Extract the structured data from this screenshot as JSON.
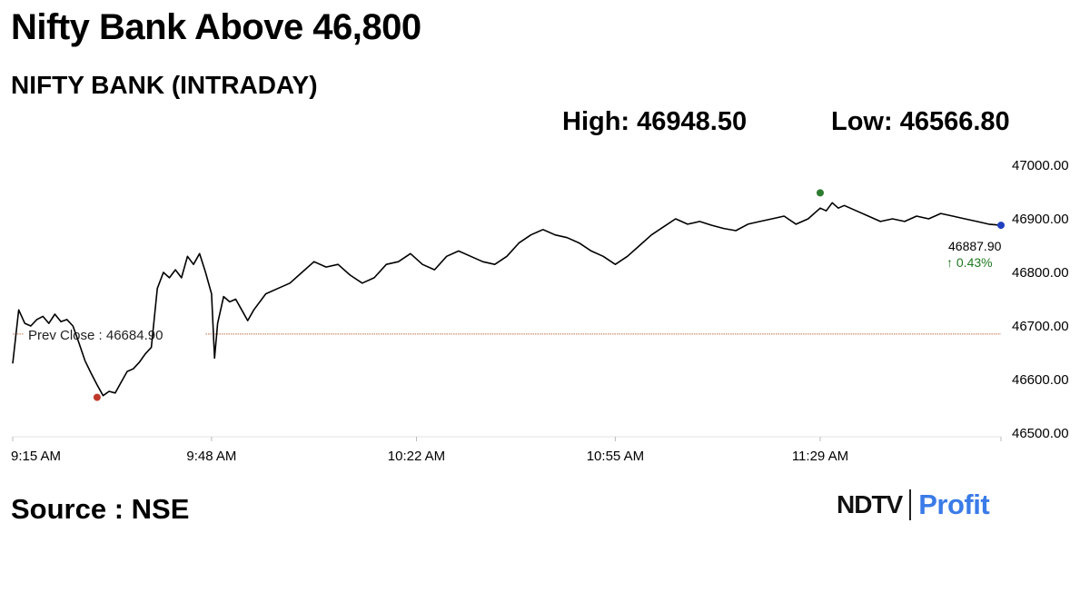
{
  "headline": "Nifty Bank Above 46,800",
  "subtitle": "NIFTY BANK (INTRADAY)",
  "stats": {
    "high": "High: 46948.50",
    "low": "Low: 46566.80"
  },
  "source": "Source : NSE",
  "logo": {
    "brand": "NDTV",
    "product": "Profit"
  },
  "colors": {
    "line": "#000000",
    "prev_close_line": "#c0704a",
    "low_marker": "#c0392b",
    "high_marker": "#2e7d32",
    "last_marker": "#1f3fbf",
    "change_positive": "#1f7a1f"
  },
  "chart_data": {
    "type": "line",
    "title": "NIFTY BANK (INTRADAY)",
    "xlabel": "",
    "ylabel": "",
    "x_ticks": [
      "9:15 AM",
      "9:48 AM",
      "10:22 AM",
      "10:55 AM",
      "11:29 AM"
    ],
    "y_ticks": [
      "46500.00",
      "46600.00",
      "46700.00",
      "46800.00",
      "46900.00",
      "47000.00"
    ],
    "ylim": [
      46500,
      47000
    ],
    "x_range_minutes": [
      0,
      164
    ],
    "tick_minutes": [
      0,
      33,
      67,
      100,
      134
    ],
    "series": [
      {
        "points": [
          [
            0,
            46630
          ],
          [
            1,
            46730
          ],
          [
            2,
            46705
          ],
          [
            3,
            46700
          ],
          [
            4,
            46712
          ],
          [
            5,
            46718
          ],
          [
            6,
            46705
          ],
          [
            7,
            46722
          ],
          [
            8,
            46708
          ],
          [
            9,
            46712
          ],
          [
            10,
            46700
          ],
          [
            11,
            46668
          ],
          [
            12,
            46635
          ],
          [
            13,
            46612
          ],
          [
            14,
            46590
          ],
          [
            15,
            46570
          ],
          [
            16,
            46578
          ],
          [
            17,
            46575
          ],
          [
            18,
            46595
          ],
          [
            19,
            46615
          ],
          [
            20,
            46620
          ],
          [
            21,
            46632
          ],
          [
            22,
            46648
          ],
          [
            23,
            46660
          ],
          [
            24,
            46770
          ],
          [
            25,
            46800
          ],
          [
            26,
            46790
          ],
          [
            27,
            46805
          ],
          [
            28,
            46790
          ],
          [
            29,
            46830
          ],
          [
            30,
            46815
          ],
          [
            31,
            46835
          ],
          [
            32,
            46800
          ],
          [
            33,
            46760
          ],
          [
            33.5,
            46640
          ],
          [
            34,
            46705
          ],
          [
            35,
            46755
          ],
          [
            36,
            46745
          ],
          [
            37,
            46750
          ],
          [
            38,
            46730
          ],
          [
            39,
            46710
          ],
          [
            40,
            46730
          ],
          [
            42,
            46760
          ],
          [
            44,
            46770
          ],
          [
            46,
            46780
          ],
          [
            48,
            46800
          ],
          [
            50,
            46820
          ],
          [
            52,
            46810
          ],
          [
            54,
            46815
          ],
          [
            56,
            46795
          ],
          [
            58,
            46780
          ],
          [
            60,
            46790
          ],
          [
            62,
            46815
          ],
          [
            64,
            46820
          ],
          [
            66,
            46835
          ],
          [
            68,
            46815
          ],
          [
            70,
            46805
          ],
          [
            72,
            46830
          ],
          [
            74,
            46840
          ],
          [
            76,
            46830
          ],
          [
            78,
            46820
          ],
          [
            80,
            46815
          ],
          [
            82,
            46830
          ],
          [
            84,
            46855
          ],
          [
            86,
            46870
          ],
          [
            88,
            46880
          ],
          [
            90,
            46870
          ],
          [
            92,
            46865
          ],
          [
            94,
            46855
          ],
          [
            96,
            46840
          ],
          [
            98,
            46830
          ],
          [
            100,
            46815
          ],
          [
            102,
            46830
          ],
          [
            104,
            46850
          ],
          [
            106,
            46870
          ],
          [
            108,
            46885
          ],
          [
            110,
            46900
          ],
          [
            112,
            46890
          ],
          [
            114,
            46895
          ],
          [
            116,
            46888
          ],
          [
            118,
            46882
          ],
          [
            120,
            46878
          ],
          [
            122,
            46890
          ],
          [
            124,
            46895
          ],
          [
            126,
            46900
          ],
          [
            128,
            46905
          ],
          [
            130,
            46890
          ],
          [
            132,
            46900
          ],
          [
            134,
            46920
          ],
          [
            135,
            46915
          ],
          [
            136,
            46930
          ],
          [
            137,
            46920
          ],
          [
            138,
            46925
          ],
          [
            140,
            46915
          ],
          [
            142,
            46905
          ],
          [
            144,
            46895
          ],
          [
            146,
            46900
          ],
          [
            148,
            46895
          ],
          [
            150,
            46905
          ],
          [
            152,
            46900
          ],
          [
            154,
            46910
          ],
          [
            156,
            46905
          ],
          [
            158,
            46900
          ],
          [
            160,
            46895
          ],
          [
            162,
            46890
          ],
          [
            164,
            46888
          ]
        ]
      }
    ],
    "prev_close": {
      "value": 46684.9,
      "label": "Prev Close : 46684.90"
    },
    "high_point": {
      "x": 134,
      "y": 46948.5
    },
    "low_point": {
      "x": 14,
      "y": 46566.8
    },
    "last": {
      "value": "46887.90",
      "change": "↑ 0.43%"
    },
    "grid": false,
    "legend": "none"
  }
}
